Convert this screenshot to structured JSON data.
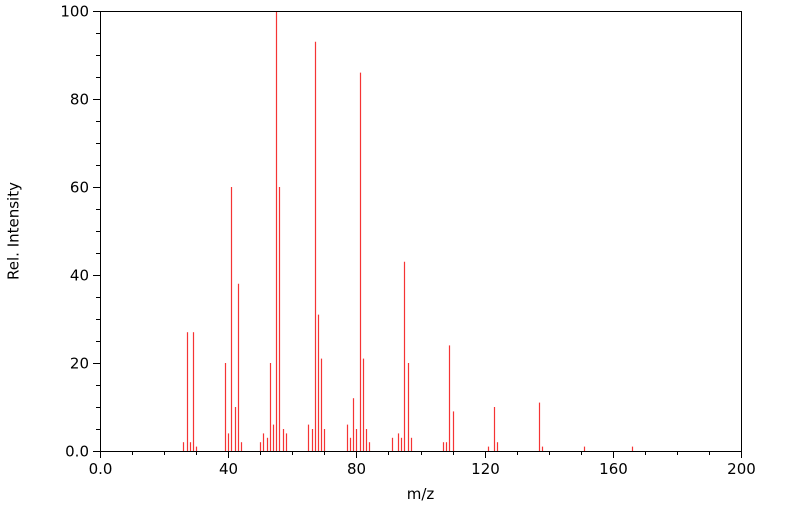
{
  "figure": {
    "background": "#ffffff",
    "axis_color": "#000000"
  },
  "chart_data": {
    "type": "bar",
    "subtype": "mass-spectrum-stick-plot",
    "title": "",
    "xlabel": "m/z",
    "ylabel": "Rel. Intensity",
    "xlim": [
      0,
      200
    ],
    "ylim": [
      0,
      100
    ],
    "grid": false,
    "legend": "none",
    "peak_color": "#f53434",
    "x_major_ticks": [
      {
        "v": 0,
        "label": "0.0"
      },
      {
        "v": 40,
        "label": "40"
      },
      {
        "v": 80,
        "label": "80"
      },
      {
        "v": 120,
        "label": "120"
      },
      {
        "v": 160,
        "label": "160"
      },
      {
        "v": 200,
        "label": "200"
      }
    ],
    "y_major_ticks": [
      {
        "v": 0,
        "label": "0.0"
      },
      {
        "v": 20,
        "label": "20"
      },
      {
        "v": 40,
        "label": "40"
      },
      {
        "v": 60,
        "label": "60"
      },
      {
        "v": 80,
        "label": "80"
      },
      {
        "v": 100,
        "label": "100"
      }
    ],
    "x_minor_step": 10,
    "y_minor_step": 5,
    "peaks": [
      [
        26,
        2
      ],
      [
        27,
        27
      ],
      [
        28,
        2
      ],
      [
        29,
        27
      ],
      [
        30,
        1
      ],
      [
        39,
        20
      ],
      [
        40,
        4
      ],
      [
        41,
        60
      ],
      [
        42,
        10
      ],
      [
        43,
        38
      ],
      [
        44,
        2
      ],
      [
        50,
        2
      ],
      [
        51,
        4
      ],
      [
        52,
        3
      ],
      [
        53,
        20
      ],
      [
        54,
        6
      ],
      [
        55,
        100
      ],
      [
        56,
        60
      ],
      [
        57,
        5
      ],
      [
        58,
        4
      ],
      [
        65,
        6
      ],
      [
        66,
        5
      ],
      [
        67,
        93
      ],
      [
        68,
        31
      ],
      [
        69,
        21
      ],
      [
        70,
        5
      ],
      [
        77,
        6
      ],
      [
        78,
        3
      ],
      [
        79,
        12
      ],
      [
        80,
        5
      ],
      [
        81,
        86
      ],
      [
        82,
        21
      ],
      [
        83,
        5
      ],
      [
        84,
        2
      ],
      [
        91,
        3
      ],
      [
        93,
        4
      ],
      [
        94,
        3
      ],
      [
        95,
        43
      ],
      [
        96,
        20
      ],
      [
        97,
        3
      ],
      [
        107,
        2
      ],
      [
        108,
        2
      ],
      [
        109,
        24
      ],
      [
        110,
        9
      ],
      [
        121,
        1
      ],
      [
        123,
        10
      ],
      [
        124,
        2
      ],
      [
        137,
        11
      ],
      [
        138,
        1
      ],
      [
        151,
        1
      ],
      [
        166,
        1
      ]
    ]
  }
}
